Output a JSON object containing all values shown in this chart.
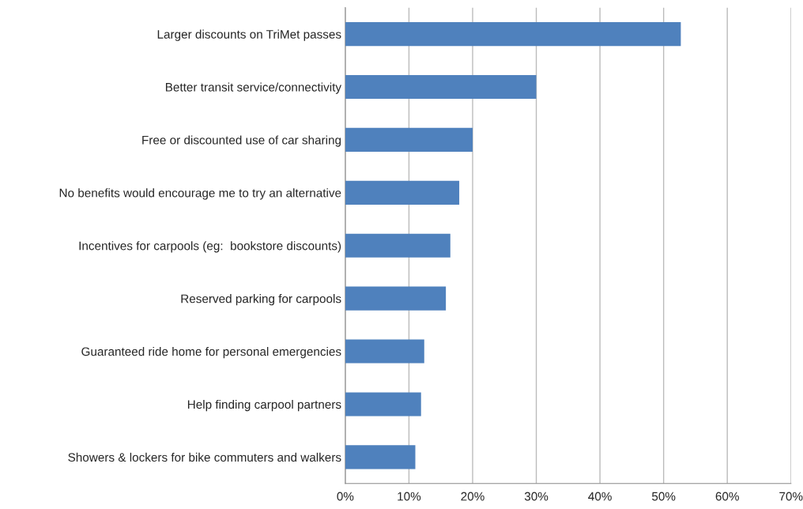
{
  "chart_data": {
    "type": "bar",
    "orientation": "horizontal",
    "categories": [
      "Larger discounts on TriMet passes",
      "Better transit service/connectivity",
      "Free or discounted use of car sharing",
      "No benefits would encourage me to try an alternative",
      "Incentives for carpools (eg:  bookstore discounts)",
      "Reserved parking for carpools",
      "Guaranteed ride home for personal emergencies",
      "Help finding carpool partners",
      "Showers & lockers for bike commuters and walkers"
    ],
    "values": [
      52.7,
      30.0,
      20.0,
      17.9,
      16.5,
      15.8,
      12.4,
      11.9,
      11.0
    ],
    "color": "#4f81bd",
    "xlim": [
      0,
      70
    ],
    "xticks": [
      {
        "value": 0,
        "label": "0%"
      },
      {
        "value": 10,
        "label": "10%"
      },
      {
        "value": 20,
        "label": "20%"
      },
      {
        "value": 30,
        "label": "30%"
      },
      {
        "value": 40,
        "label": "40%"
      },
      {
        "value": 50,
        "label": "50%"
      },
      {
        "value": 60,
        "label": "60%"
      },
      {
        "value": 70,
        "label": "70%"
      }
    ],
    "grid": "x"
  }
}
